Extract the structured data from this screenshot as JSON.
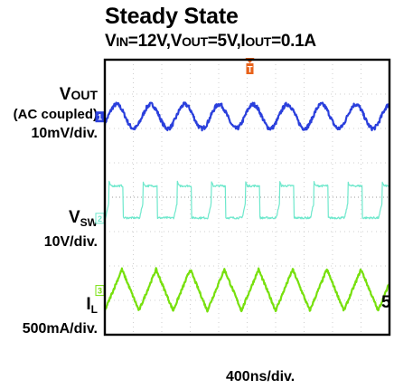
{
  "title": "Steady State",
  "subtitle": {
    "vin": "V",
    "vin_sub": "IN",
    "vin_val": "=12V,",
    "vout": "V",
    "vout_sub": "OUT",
    "vout_val": "=5V,",
    "iout": "I",
    "iout_sub": "OUT",
    "iout_val": "=0.1A"
  },
  "channels": {
    "vout": {
      "line1": "V",
      "line1_sub": "OUT",
      "line2": "(AC coupled)",
      "line3": "10mV/div."
    },
    "vsw": {
      "line1": "V",
      "line1_sub": "SW",
      "line2": "10V/div."
    },
    "il": {
      "line1": "I",
      "line1_sub": "L",
      "line2": "500mA/div."
    }
  },
  "xlabel": "400ns/div.",
  "colors": {
    "vout": "#2a3fdc",
    "vsw": "#6ee8cc",
    "il": "#77e00d",
    "trigger": "#e8621a",
    "grid": "#cfcfcf",
    "frame": "#000000"
  },
  "chart_data": {
    "type": "line",
    "title": "Steady State",
    "subtitle": "VIN=12V,VOUT=5V,IOUT=0.1A",
    "xlabel": "400ns/div.",
    "grid": true,
    "x": {
      "unit": "div",
      "range": [
        0,
        10
      ],
      "period_div": 1.2
    },
    "y": {
      "unit": "div",
      "range": [
        -4,
        4
      ]
    },
    "series": [
      {
        "name": "VOUT (AC coupled)",
        "scale": "10mV/div.",
        "color": "#2a3fdc",
        "marker": "1",
        "baseline_div": 2.35,
        "shape": "ripple",
        "amplitude_div": 0.35
      },
      {
        "name": "VSW",
        "scale": "10V/div.",
        "color": "#6ee8cc",
        "marker": "2",
        "low_div": -0.6,
        "high_div": 0.33,
        "shape": "switching",
        "duty": 0.42
      },
      {
        "name": "IL",
        "scale": "500mA/div.",
        "color": "#77e00d",
        "marker": "3",
        "baseline_div": -2.7,
        "shape": "triangle",
        "amplitude_div": 0.6
      }
    ],
    "trigger_marker": "T",
    "right_edge_label": "5"
  }
}
